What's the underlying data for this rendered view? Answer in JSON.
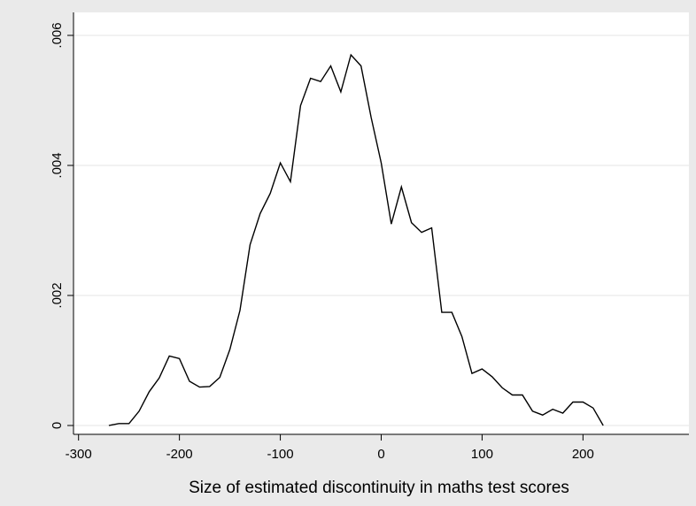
{
  "chart_data": {
    "type": "line",
    "xlabel": "Size of estimated  discontinuity in maths test scores",
    "ylabel": "",
    "xlim": [
      -305,
      305
    ],
    "ylim": [
      0,
      0.006
    ],
    "x_ticks": [
      -300,
      -200,
      -100,
      0,
      100,
      200
    ],
    "x_tick_labels": [
      "-300",
      "-200",
      "-100",
      "0",
      "100",
      "200"
    ],
    "y_ticks": [
      0,
      0.002,
      0.004,
      0.006
    ],
    "y_tick_labels": [
      "0",
      ".002",
      ".004",
      ".006"
    ],
    "grid": "horizontal",
    "legend": "none",
    "colors": {
      "background": "#eaeaea",
      "plot_area": "#ffffff",
      "line": "#000000",
      "grid": "#e6e6e6"
    },
    "series": [
      {
        "x": [
          -270,
          -260,
          -250,
          -240,
          -230,
          -220,
          -210,
          -200,
          -190,
          -180,
          -170,
          -160,
          -150,
          -140,
          -130,
          -120,
          -110,
          -100,
          -90,
          -80,
          -70,
          -60,
          -50,
          -40,
          -30,
          -20,
          -10,
          0,
          10,
          20,
          30,
          40,
          50,
          60,
          70,
          80,
          90,
          100,
          110,
          120,
          130,
          140,
          150,
          160,
          170,
          180,
          190,
          200,
          210,
          220
        ],
        "y": [
          0.0,
          3e-05,
          3e-05,
          0.00022,
          0.00052,
          0.00073,
          0.00107,
          0.00103,
          0.00068,
          0.00059,
          0.0006,
          0.00074,
          0.00117,
          0.00177,
          0.00278,
          0.00326,
          0.00357,
          0.00404,
          0.00375,
          0.00492,
          0.00534,
          0.00529,
          0.00553,
          0.00513,
          0.0057,
          0.00553,
          0.00474,
          0.00404,
          0.0031,
          0.00367,
          0.00312,
          0.00297,
          0.00304,
          0.00174,
          0.00174,
          0.00137,
          0.0008,
          0.00087,
          0.00075,
          0.00058,
          0.00047,
          0.00047,
          0.00022,
          0.00016,
          0.00025,
          0.00019,
          0.00036,
          0.00036,
          0.00027,
          0.0
        ]
      }
    ]
  }
}
